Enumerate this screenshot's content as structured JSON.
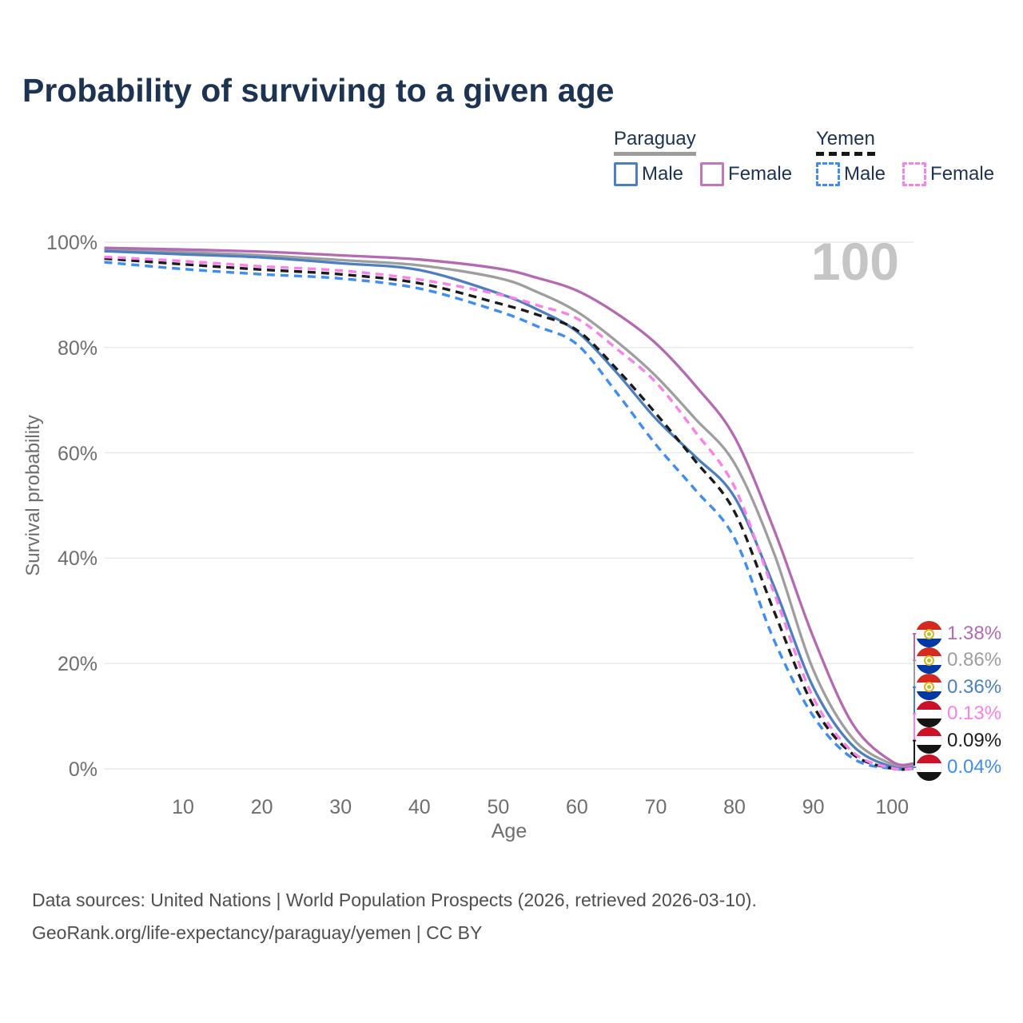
{
  "title": "Probability of surviving to a given age",
  "watermark": "100",
  "legend": {
    "groups": [
      {
        "country": "Paraguay",
        "underline": "solid",
        "underline_color": "#9c9c9c",
        "items": [
          {
            "label": "Male",
            "color": "#4d7fbe",
            "dashed": false
          },
          {
            "label": "Female",
            "color": "#c277bd",
            "dashed": false
          }
        ]
      },
      {
        "country": "Yemen",
        "underline": "dashed",
        "underline_color": "#161616",
        "items": [
          {
            "label": "Male",
            "color": "#3f8df1",
            "dashed": true
          },
          {
            "label": "Female",
            "color": "#fb80e8",
            "dashed": true
          }
        ]
      }
    ]
  },
  "chart_data": {
    "type": "line",
    "title": "Probability of surviving to a given age",
    "xlabel": "Age",
    "ylabel": "Survival probability",
    "x": [
      0,
      10,
      20,
      30,
      40,
      50,
      55,
      60,
      65,
      70,
      75,
      80,
      85,
      90,
      95,
      100
    ],
    "xticks": [
      10,
      20,
      30,
      40,
      50,
      60,
      70,
      80,
      90,
      100
    ],
    "yticks": [
      0,
      20,
      40,
      60,
      80,
      100
    ],
    "ytick_suffix": "%",
    "ylim": [
      0,
      100
    ],
    "xlim": [
      0,
      103
    ],
    "grid": "horizontal",
    "legend_position": "top-right",
    "series": [
      {
        "name": "Paraguay Female",
        "country": "Paraguay",
        "sex": "Female",
        "style": "solid",
        "color": "#b46ab3",
        "flag": "paraguay",
        "end_label": "1.38%",
        "values": [
          98.9,
          98.6,
          98.2,
          97.5,
          96.7,
          95.0,
          93.2,
          90.8,
          86.5,
          80.8,
          72.8,
          63.0,
          45.5,
          25.0,
          8.5,
          1.38
        ]
      },
      {
        "name": "Paraguay Both sexes",
        "country": "Paraguay",
        "sex": "Both sexes",
        "style": "solid",
        "color": "#9e9e9e",
        "flag": "paraguay",
        "end_label": "0.86%",
        "values": [
          98.6,
          98.1,
          97.5,
          96.6,
          95.6,
          93.2,
          90.5,
          86.8,
          81.2,
          74.6,
          66.5,
          58.0,
          41.0,
          18.8,
          5.8,
          0.86
        ]
      },
      {
        "name": "Paraguay Male",
        "country": "Paraguay",
        "sex": "Male",
        "style": "solid",
        "color": "#4d7fbe",
        "flag": "paraguay",
        "end_label": "0.36%",
        "values": [
          98.3,
          97.7,
          97.1,
          96.0,
          94.7,
          90.3,
          87.2,
          83.0,
          75.3,
          66.5,
          59.3,
          51.6,
          34.7,
          15.5,
          4.4,
          0.36
        ]
      },
      {
        "name": "Yemen Female",
        "country": "Yemen",
        "sex": "Female",
        "style": "dashed",
        "color": "#fb80e8",
        "flag": "yemen",
        "end_label": "0.13%",
        "values": [
          97.2,
          96.4,
          95.4,
          94.6,
          92.9,
          90.1,
          88.0,
          85.5,
          79.8,
          73.4,
          64.0,
          53.5,
          33.5,
          13.5,
          3.2,
          0.13
        ]
      },
      {
        "name": "Yemen Both sexes",
        "country": "Yemen",
        "sex": "Both sexes",
        "style": "dashed",
        "color": "#1b1b1b",
        "flag": "yemen",
        "end_label": "0.09%",
        "values": [
          96.9,
          95.8,
          94.8,
          93.9,
          92.2,
          88.4,
          86.2,
          83.3,
          76.0,
          67.5,
          58.5,
          48.8,
          30.0,
          12.0,
          2.8,
          0.09
        ]
      },
      {
        "name": "Yemen Male",
        "country": "Yemen",
        "sex": "Male",
        "style": "dashed",
        "color": "#3f8df1",
        "flag": "yemen",
        "end_label": "0.04%",
        "values": [
          96.2,
          94.9,
          93.9,
          93.1,
          91.2,
          86.9,
          84.0,
          80.6,
          71.5,
          61.6,
          53.0,
          43.8,
          24.5,
          10.0,
          2.0,
          0.04
        ]
      }
    ]
  },
  "footer": {
    "line1": "Data sources: United Nations | World Population Prospects (2026, retrieved 2026-03-10).",
    "line2": "GeoRank.org/life-expectancy/paraguay/yemen | CC BY"
  }
}
